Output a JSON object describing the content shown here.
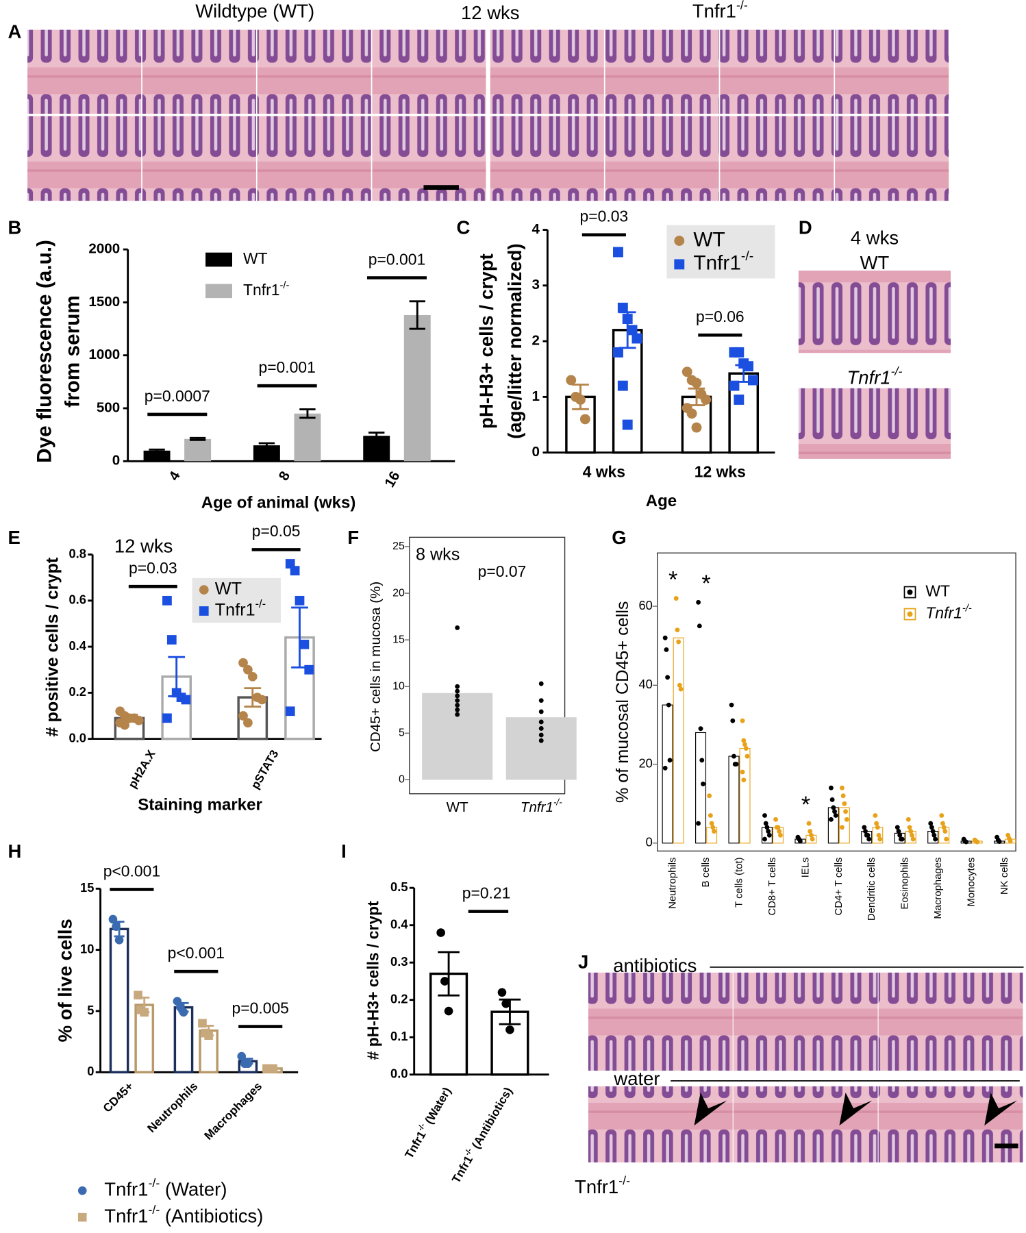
{
  "panel_A": {
    "panel": "A",
    "titles": [
      "Wildtype (WT)",
      "12 wks",
      "Tnfr1-/-"
    ]
  },
  "panel_D": {
    "panel": "D",
    "title": "4 wks",
    "rows": [
      "WT",
      "Tnfr1-/-"
    ]
  },
  "panel_J": {
    "panel": "J",
    "rows": [
      "antibiotics",
      "water"
    ],
    "genotype": "Tnfr1-/-"
  },
  "chart_data": [
    {
      "panel": "B",
      "type": "bar",
      "y_label": [
        "Dye fluorescence (a.u.)",
        "from serum"
      ],
      "x_label": "Age of animal (wks)",
      "categories": [
        "4",
        "8",
        "16"
      ],
      "series": [
        {
          "name": "WT",
          "color": "#000000",
          "fill": "#000000",
          "values": [
            100,
            150,
            240
          ],
          "errors": [
            10,
            20,
            30
          ]
        },
        {
          "name": "Tnfr1-/-",
          "color": "#b3b3b3",
          "fill": "#b3b3b3",
          "values": [
            210,
            450,
            1380
          ],
          "errors": [
            10,
            40,
            130
          ]
        }
      ],
      "ylim": [
        0,
        2000
      ],
      "yticks": [
        0,
        500,
        1000,
        1500,
        2000
      ],
      "annotations": [
        "p=0.0007",
        "p=0.001",
        "p=0.001"
      ]
    },
    {
      "panel": "C",
      "type": "bar",
      "y_label": [
        "pH-H3+ cells / crypt",
        "(age/litter normalized)"
      ],
      "x_label": "Age",
      "categories": [
        "4 wks",
        "12 wks"
      ],
      "series": [
        {
          "name": "WT",
          "color": "#b5844a",
          "edge": "#000000",
          "fill": "#ffffff",
          "marker": "circle",
          "values": [
            1,
            1
          ],
          "errors": [
            0.22,
            0.15
          ],
          "points": [
            [
              1.3,
              1.0,
              0.95,
              0.6
            ],
            [
              1.45,
              1.3,
              1.25,
              1.05,
              0.95,
              0.8,
              0.7,
              0.45
            ]
          ]
        },
        {
          "name": "Tnfr1-/-",
          "color": "#1a4fe0",
          "edge": "#000000",
          "fill": "#ffffff",
          "marker": "square",
          "values": [
            2.2,
            1.42
          ],
          "errors": [
            0.32,
            0.15
          ],
          "points": [
            [
              3.6,
              2.6,
              2.4,
              2.2,
              2.05,
              1.8,
              1.2,
              0.5
            ],
            [
              1.8,
              1.8,
              1.6,
              1.55,
              1.3,
              1.2,
              0.95
            ]
          ]
        }
      ],
      "ylim": [
        0,
        4
      ],
      "yticks": [
        0,
        1,
        2,
        3,
        4
      ],
      "annotations": [
        "p=0.03",
        "p=0.06"
      ]
    },
    {
      "panel": "E",
      "type": "bar",
      "title": "12 wks",
      "y_label": [
        "# positive cells / crypt"
      ],
      "x_label": "Staining marker",
      "categories": [
        "pH2A.X",
        "pSTAT3"
      ],
      "series": [
        {
          "name": "WT",
          "color": "#b5844a",
          "edge": "#555555",
          "fill": "#ffffff",
          "marker": "circle",
          "values": [
            0.09,
            0.18
          ],
          "errors": [
            0.015,
            0.04
          ],
          "points": [
            [
              0.12,
              0.1,
              0.09,
              0.09,
              0.08,
              0.07,
              0.06
            ],
            [
              0.33,
              0.3,
              0.27,
              0.18,
              0.17,
              0.1,
              0.07
            ]
          ]
        },
        {
          "name": "Tnfr1-/-",
          "color": "#1a4fe0",
          "edge": "#aaaaaa",
          "fill": "#ffffff",
          "marker": "square",
          "values": [
            0.27,
            0.44
          ],
          "errors": [
            0.085,
            0.13
          ],
          "points": [
            [
              0.6,
              0.43,
              0.2,
              0.18,
              0.17,
              0.09
            ],
            [
              0.76,
              0.73,
              0.6,
              0.41,
              0.3,
              0.12
            ]
          ]
        }
      ],
      "ylim": [
        0,
        0.8
      ],
      "yticks": [
        {
          "value": 0,
          "label": "0.0"
        },
        0.2,
        0.4,
        0.6,
        0.8
      ],
      "annotations": [
        "p=0.03",
        "p=0.05"
      ]
    },
    {
      "panel": "F",
      "type": "bar",
      "frame": true,
      "title": "8 wks",
      "p_value": "p=0.07",
      "y_label": [
        "CD45+ cells in mucosa (%)"
      ],
      "categories": [
        "WT",
        "Tnfr1-/-"
      ],
      "series": [
        {
          "color": "#000000",
          "fill": "#d3d3d3",
          "values": [
            9.3,
            6.7
          ],
          "points": [
            [
              16.3,
              10.0,
              9.5,
              9.0,
              8.5,
              8.0,
              7.5,
              7.0
            ],
            [
              10.3,
              8.5,
              7.3,
              6.2,
              5.5,
              4.8,
              4.2
            ]
          ]
        }
      ],
      "ylim": [
        -1.5,
        26
      ],
      "yticks": [
        0,
        5,
        10,
        15,
        20,
        25
      ]
    },
    {
      "panel": "G",
      "type": "bar",
      "frame": true,
      "y_label": [
        "% of mucosal CD45+ cells"
      ],
      "categories": [
        "Neutrophils",
        "B cells",
        "T cells (tot)",
        "CD8+ T cells",
        "IELs",
        "CD4+ T cells",
        "Dendritic cells",
        "Eosinophils",
        "Macrophages",
        "Monocytes",
        "NK cells"
      ],
      "series": [
        {
          "name": "WT",
          "color": "#000000",
          "edge": "#000000",
          "fill": "#ffffff",
          "marker": "circle",
          "values": [
            35,
            28,
            22,
            4,
            1,
            9,
            3,
            2.5,
            3,
            0.5,
            0.5
          ],
          "points": [
            [
              52,
              49,
              42,
              35,
              21,
              19
            ],
            [
              61,
              55,
              29,
              21,
              15,
              5
            ],
            [
              35,
              31,
              22,
              20,
              20
            ],
            [
              7,
              5,
              4,
              3,
              2,
              1
            ],
            [
              1.5,
              1,
              0.5
            ],
            [
              14,
              11,
              9,
              8,
              7,
              6
            ],
            [
              4,
              3,
              2,
              2,
              1
            ],
            [
              4,
              3,
              2,
              1,
              1
            ],
            [
              5,
              4,
              3,
              2,
              1
            ],
            [
              1,
              0.5,
              0.3
            ],
            [
              1.5,
              0.8,
              0.4
            ]
          ]
        },
        {
          "name": "Tnfr1-/-",
          "color": "#e8a21a",
          "edge": "#e8a21a",
          "fill": "#ffffff",
          "marker": "circle",
          "values": [
            52,
            4,
            24,
            4,
            2,
            9,
            4,
            3,
            4,
            0.5,
            1
          ],
          "points": [
            [
              62,
              54,
              51,
              40,
              39
            ],
            [
              12,
              7,
              5,
              4,
              3
            ],
            [
              31,
              26,
              25,
              24,
              22,
              18,
              16
            ],
            [
              6,
              4,
              4,
              3,
              2
            ],
            [
              5,
              3,
              2,
              1
            ],
            [
              14,
              12,
              10,
              8,
              6,
              4
            ],
            [
              7,
              5,
              4,
              2,
              1
            ],
            [
              6,
              4,
              3,
              2,
              1
            ],
            [
              7,
              5,
              4,
              3,
              1
            ],
            [
              0.8,
              0.5,
              0.3
            ],
            [
              2,
              1.2,
              0.5
            ]
          ]
        }
      ],
      "ylim": [
        -2,
        73.5
      ],
      "yticks": [
        0,
        20,
        40,
        60
      ],
      "annotations": [
        "*",
        "*",
        null,
        null,
        "*",
        null,
        null,
        null,
        null,
        null,
        null
      ]
    },
    {
      "panel": "H",
      "type": "bar",
      "y_label": [
        "% of live cells"
      ],
      "categories": [
        "CD45+",
        "Neutrophils",
        "Macrophages"
      ],
      "series": [
        {
          "name": "Tnfr1-/- (Water)",
          "color": "#3a6ab0",
          "edge": "#1c2f5a",
          "fill": "#ffffff",
          "marker": "circle",
          "values": [
            11.7,
            5.3,
            0.9
          ],
          "errors": [
            0.6,
            0.35,
            0.2
          ],
          "points": [
            [
              12.5,
              11.9,
              10.8
            ],
            [
              5.8,
              5.3,
              4.9
            ],
            [
              1.3,
              0.7,
              0.7
            ]
          ]
        },
        {
          "name": "Tnfr1-/- (Antibiotics)",
          "color": "#c8a97e",
          "edge": "#b8996a",
          "fill": "#ffffff",
          "marker": "square",
          "values": [
            5.5,
            3.4,
            0.3
          ],
          "errors": [
            0.6,
            0.4,
            0.05
          ],
          "points": [
            [
              6.3,
              5.1,
              4.9
            ],
            [
              4.0,
              3.2,
              3.0
            ],
            [
              0.3,
              0.3,
              0.3
            ]
          ]
        }
      ],
      "ylim": [
        0,
        15
      ],
      "yticks": [
        0,
        5,
        10,
        15
      ],
      "annotations": [
        "p<0.001",
        "p<0.001",
        "p=0.005"
      ]
    },
    {
      "panel": "I",
      "type": "bar",
      "y_label": [
        "# pH-H3+ cells / crypt"
      ],
      "categories": [
        "Tnfr1-/- (Water)",
        "Tnfr1-/- (Antibiotics)"
      ],
      "p_value": "p=0.21",
      "series": [
        {
          "color": "#000000",
          "edge": "#000000",
          "fill": "#ffffff",
          "marker": "circle",
          "values": [
            0.27,
            0.168
          ],
          "errors": [
            0.058,
            0.033
          ],
          "points": [
            [
              0.38,
              0.25,
              0.17
            ],
            [
              0.22,
              0.19,
              0.12
            ]
          ]
        }
      ],
      "ylim": [
        0,
        0.5
      ],
      "yticks": [
        {
          "value": 0,
          "label": "0.0"
        },
        0.1,
        0.2,
        0.3,
        0.4,
        0.5
      ]
    }
  ]
}
